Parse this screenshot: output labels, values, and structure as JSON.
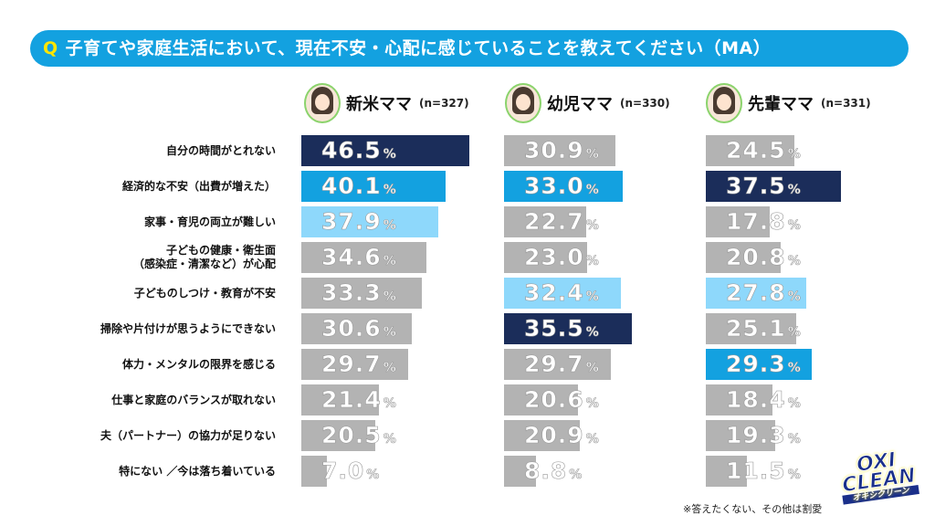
{
  "question": {
    "prefix": "Q",
    "text": "子育てや家庭生活において、現在不安・心配に感じていることを教えてください（MA）"
  },
  "colors": {
    "top1": "#1b2d5a",
    "top2": "#13a1e0",
    "top3": "#8ed8fb",
    "other": "#b3b3b3",
    "accent": "#13a1e0"
  },
  "chart_data": {
    "type": "bar",
    "title": "子育てや家庭生活において、現在不安・心配に感じていることを教えてください（MA）",
    "unit": "%",
    "categories": [
      "自分の時間がとれない",
      "経済的な不安（出費が増えた）",
      "家事・育児の両立が難しい",
      "子どもの健康・衛生面\n（感染症・清潔など）が心配",
      "子どものしつけ・教育が不安",
      "掃除や片付けが思うようにできない",
      "体力・メンタルの限界を感じる",
      "仕事と家庭のバランスが取れない",
      "夫（パートナー）の協力が足りない",
      "特にない ／今は落ち着いている"
    ],
    "series": [
      {
        "name": "新米ママ",
        "n": "(n=327)",
        "values": [
          46.5,
          40.1,
          37.9,
          34.6,
          33.3,
          30.6,
          29.7,
          21.4,
          20.5,
          7.0
        ],
        "rank": [
          1,
          2,
          3,
          0,
          0,
          0,
          0,
          0,
          0,
          0
        ]
      },
      {
        "name": "幼児ママ",
        "n": "(n=330)",
        "values": [
          30.9,
          33.0,
          22.7,
          23.0,
          32.4,
          35.5,
          29.7,
          20.6,
          20.9,
          8.8
        ],
        "rank": [
          0,
          2,
          0,
          0,
          3,
          1,
          0,
          0,
          0,
          0
        ]
      },
      {
        "name": "先輩ママ",
        "n": "(n=331)",
        "values": [
          24.5,
          37.5,
          17.8,
          20.8,
          27.8,
          25.1,
          29.3,
          18.4,
          19.3,
          11.5
        ],
        "rank": [
          0,
          1,
          0,
          0,
          3,
          0,
          2,
          0,
          0,
          0
        ]
      }
    ]
  },
  "note": "※答えたくない、その他は割愛",
  "logo": {
    "line1": "OXI",
    "line2": "CLEAN",
    "sub": "オキシクリーン"
  }
}
